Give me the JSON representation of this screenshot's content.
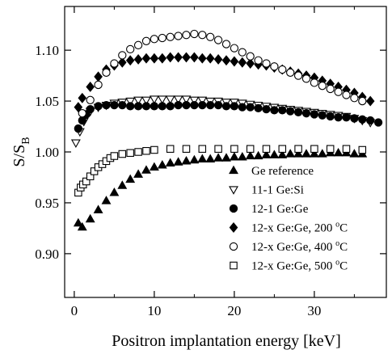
{
  "chart_data": {
    "type": "scatter",
    "xlabel": "Positron implantation energy [keV]",
    "ylabel_main": "S/S",
    "ylabel_sub": "B",
    "xlim": [
      -1.2,
      39.0
    ],
    "ylim": [
      0.857,
      1.143
    ],
    "xticks": [
      0,
      10,
      20,
      30
    ],
    "yticks": [
      0.9,
      0.95,
      1.0,
      1.05,
      1.1
    ],
    "ytick_labels": [
      "0.90",
      "0.95",
      "1.00",
      "1.05",
      "1.10"
    ],
    "grid": false,
    "legend_position": "bottom-right",
    "series": [
      {
        "name": "Ge reference",
        "marker": "triangle-up",
        "fill": "#000000",
        "x": [
          0.5,
          1.0,
          2.0,
          3.0,
          4.0,
          5.0,
          6.0,
          7.0,
          8.0,
          9.0,
          10.0,
          11.0,
          12.0,
          13.0,
          14.0,
          15.0,
          16.0,
          17.0,
          18.0,
          19.0,
          20.0,
          21.0,
          22.0,
          23.0,
          24.0,
          25.0,
          26.0,
          27.0,
          28.0,
          29.0,
          30.0,
          31.0,
          32.0,
          33.0,
          34.0,
          35.0,
          36.0
        ],
        "y": [
          0.93,
          0.926,
          0.934,
          0.943,
          0.952,
          0.96,
          0.967,
          0.973,
          0.978,
          0.982,
          0.985,
          0.987,
          0.989,
          0.99,
          0.991,
          0.992,
          0.993,
          0.993,
          0.994,
          0.994,
          0.995,
          0.995,
          0.996,
          0.996,
          0.997,
          0.997,
          0.997,
          0.998,
          0.998,
          0.998,
          0.998,
          0.998,
          0.999,
          0.999,
          0.999,
          0.998,
          0.998
        ]
      },
      {
        "name": "11-1 Ge:Si",
        "marker": "triangle-down",
        "fill": "#ffffff",
        "x": [
          0.2,
          0.7,
          1.2,
          2.0,
          3.0,
          4.0,
          5.0,
          6.0,
          7.0,
          8.0,
          9.0,
          10.0,
          11.0,
          12.0,
          13.0,
          14.0,
          15.0,
          16.0,
          17.0,
          18.0,
          19.0,
          20.0,
          21.0,
          22.0,
          23.0,
          24.0,
          25.0,
          26.0,
          27.0,
          28.0,
          29.0,
          30.0,
          31.0,
          32.0,
          33.0,
          34.0,
          35.0,
          36.0,
          37.0
        ],
        "y": [
          1.009,
          1.02,
          1.03,
          1.04,
          1.044,
          1.046,
          1.048,
          1.049,
          1.05,
          1.051,
          1.051,
          1.052,
          1.052,
          1.052,
          1.052,
          1.052,
          1.051,
          1.051,
          1.05,
          1.05,
          1.049,
          1.049,
          1.048,
          1.047,
          1.046,
          1.045,
          1.044,
          1.043,
          1.042,
          1.041,
          1.04,
          1.039,
          1.038,
          1.037,
          1.036,
          1.035,
          1.033,
          1.031,
          1.029
        ]
      },
      {
        "name": "12-1 Ge:Ge",
        "marker": "circle",
        "fill": "#000000",
        "x": [
          0.5,
          1.0,
          1.5,
          2.0,
          3.0,
          4.0,
          5.0,
          6.0,
          7.0,
          8.0,
          9.0,
          10.0,
          11.0,
          12.0,
          13.0,
          14.0,
          15.0,
          16.0,
          17.0,
          18.0,
          19.0,
          20.0,
          21.0,
          22.0,
          23.0,
          24.0,
          25.0,
          26.0,
          27.0,
          28.0,
          29.0,
          30.0,
          31.0,
          32.0,
          33.0,
          34.0,
          35.0,
          36.0,
          37.0,
          38.0
        ],
        "y": [
          1.023,
          1.031,
          1.037,
          1.042,
          1.045,
          1.046,
          1.046,
          1.046,
          1.045,
          1.045,
          1.045,
          1.045,
          1.045,
          1.045,
          1.046,
          1.046,
          1.046,
          1.046,
          1.046,
          1.046,
          1.045,
          1.045,
          1.044,
          1.044,
          1.043,
          1.042,
          1.041,
          1.041,
          1.04,
          1.039,
          1.038,
          1.037,
          1.036,
          1.035,
          1.034,
          1.034,
          1.033,
          1.032,
          1.031,
          1.029
        ]
      },
      {
        "name": "12-x Ge:Ge, 200 °C",
        "marker": "diamond",
        "fill": "#000000",
        "x": [
          0.5,
          1.0,
          2.0,
          3.0,
          4.0,
          5.0,
          6.0,
          7.0,
          8.0,
          9.0,
          10.0,
          11.0,
          12.0,
          13.0,
          14.0,
          15.0,
          16.0,
          17.0,
          18.0,
          19.0,
          20.0,
          21.0,
          22.0,
          23.0,
          24.0,
          25.0,
          26.0,
          27.0,
          28.0,
          29.0,
          30.0,
          31.0,
          32.0,
          33.0,
          34.0,
          35.0,
          36.0,
          37.0
        ],
        "y": [
          1.044,
          1.053,
          1.064,
          1.074,
          1.081,
          1.085,
          1.088,
          1.09,
          1.091,
          1.092,
          1.092,
          1.092,
          1.093,
          1.093,
          1.093,
          1.093,
          1.092,
          1.092,
          1.091,
          1.09,
          1.089,
          1.088,
          1.087,
          1.086,
          1.085,
          1.083,
          1.081,
          1.079,
          1.077,
          1.075,
          1.073,
          1.07,
          1.067,
          1.064,
          1.061,
          1.058,
          1.054,
          1.05
        ]
      },
      {
        "name": "12-x Ge:Ge, 400 °C",
        "marker": "circle",
        "fill": "#ffffff",
        "x": [
          1.0,
          2.0,
          3.0,
          4.0,
          5.0,
          6.0,
          7.0,
          8.0,
          9.0,
          10.0,
          11.0,
          12.0,
          13.0,
          14.0,
          15.0,
          16.0,
          17.0,
          18.0,
          19.0,
          20.0,
          21.0,
          22.0,
          23.0,
          24.0,
          25.0,
          26.0,
          27.0,
          28.0,
          29.0,
          30.0,
          31.0,
          32.0,
          33.0,
          34.0,
          35.0,
          36.0
        ],
        "y": [
          1.038,
          1.051,
          1.066,
          1.078,
          1.087,
          1.095,
          1.101,
          1.105,
          1.109,
          1.111,
          1.112,
          1.113,
          1.114,
          1.115,
          1.116,
          1.115,
          1.113,
          1.11,
          1.106,
          1.102,
          1.098,
          1.094,
          1.09,
          1.087,
          1.084,
          1.081,
          1.078,
          1.075,
          1.072,
          1.068,
          1.065,
          1.062,
          1.059,
          1.056,
          1.053,
          1.05
        ]
      },
      {
        "name": "12-x Ge:Ge, 500 °C",
        "marker": "square",
        "fill": "#ffffff",
        "x": [
          0.5,
          0.8,
          1.1,
          1.5,
          2.0,
          2.5,
          3.0,
          3.5,
          4.0,
          4.5,
          5.0,
          6.0,
          7.0,
          8.0,
          9.0,
          10.0,
          12.0,
          14.0,
          16.0,
          18.0,
          20.0,
          22.0,
          24.0,
          26.0,
          28.0,
          30.0,
          32.0,
          34.0,
          36.0
        ],
        "y": [
          0.96,
          0.965,
          0.968,
          0.971,
          0.976,
          0.981,
          0.985,
          0.988,
          0.991,
          0.994,
          0.996,
          0.998,
          0.999,
          1.0,
          1.001,
          1.002,
          1.003,
          1.003,
          1.003,
          1.003,
          1.003,
          1.003,
          1.003,
          1.003,
          1.003,
          1.003,
          1.003,
          1.003,
          1.002
        ]
      }
    ],
    "legend": [
      {
        "marker": "triangle-up",
        "fill": "#000000",
        "label": "Ge reference"
      },
      {
        "marker": "triangle-down",
        "fill": "#ffffff",
        "label": "11-1 Ge:Si"
      },
      {
        "marker": "circle",
        "fill": "#000000",
        "label": "12-1 Ge:Ge"
      },
      {
        "marker": "diamond",
        "fill": "#000000",
        "label": "12-x Ge:Ge, 200",
        "degree": "o",
        "unit": "C"
      },
      {
        "marker": "circle",
        "fill": "#ffffff",
        "label": "12-x Ge:Ge, 400",
        "degree": "o",
        "unit": "C"
      },
      {
        "marker": "square",
        "fill": "#ffffff",
        "label": "12-x Ge:Ge, 500",
        "degree": "o",
        "unit": "C"
      }
    ]
  }
}
